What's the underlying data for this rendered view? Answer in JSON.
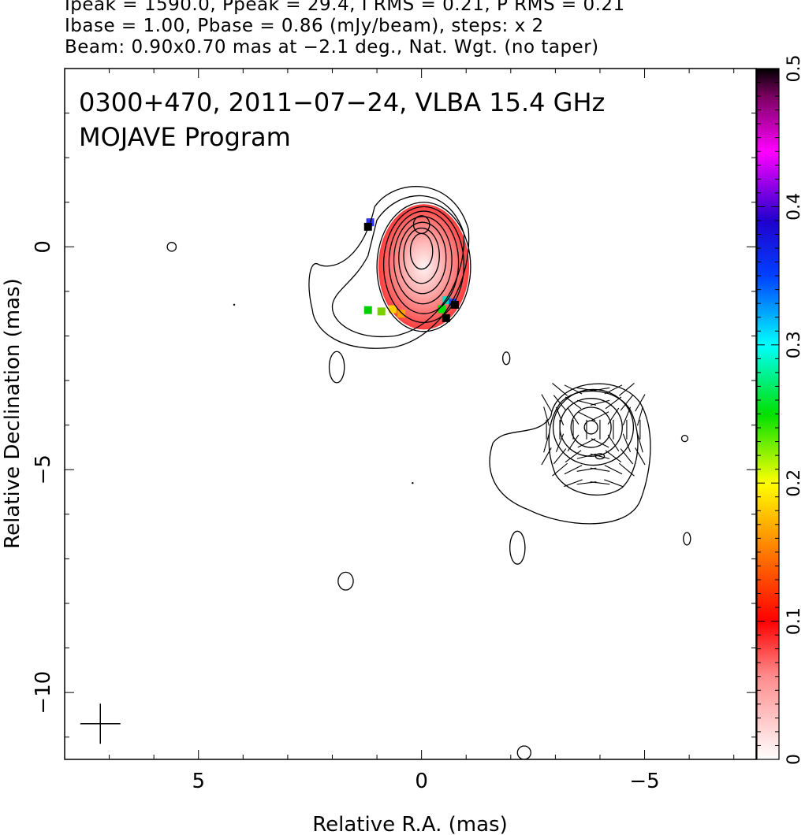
{
  "header": {
    "line1": "Ipeak = 1590.0, Ppeak = 29.4, I RMS = 0.21, P RMS = 0.21",
    "line2": "Ibase = 1.00, Pbase = 0.86 (mJy/beam), steps: x 2",
    "line3": "Beam: 0.90x0.70 mas at −2.1 deg., Nat. Wgt. (no taper)"
  },
  "chart_data": {
    "type": "heatmap",
    "title": "0300+470, 2011−07−24, VLBA 15.4 GHz",
    "subtitle": "MOJAVE Program",
    "xlabel": "Relative R.A. (mas)",
    "ylabel": "Relative Declination (mas)",
    "xlim": [
      8.0,
      -7.5
    ],
    "ylim": [
      -11.5,
      4.0
    ],
    "x_reversed": true,
    "x_ticks": [
      {
        "value": 5,
        "label": "5"
      },
      {
        "value": 0,
        "label": "0"
      },
      {
        "value": -5,
        "label": "−5"
      }
    ],
    "y_ticks": [
      {
        "value": 0,
        "label": "0"
      },
      {
        "value": -5,
        "label": "−5"
      },
      {
        "value": -10,
        "label": "−10"
      }
    ],
    "colorbar": {
      "range": [
        0,
        0.5
      ],
      "ticks": [
        {
          "value": 0,
          "label": "0"
        },
        {
          "value": 0.1,
          "label": "0.1"
        },
        {
          "value": 0.2,
          "label": "0.2"
        },
        {
          "value": 0.3,
          "label": "0.3"
        },
        {
          "value": 0.4,
          "label": "0.4"
        },
        {
          "value": 0.5,
          "label": "0.5"
        }
      ]
    },
    "core_contours": [
      {
        "x": -0.05,
        "y": -0.45,
        "rx": 1.05,
        "ry": 1.45
      },
      {
        "x": -0.05,
        "y": -0.4,
        "rx": 0.9,
        "ry": 1.3
      },
      {
        "x": -0.05,
        "y": -0.35,
        "rx": 0.78,
        "ry": 1.15
      },
      {
        "x": -0.03,
        "y": -0.3,
        "rx": 0.65,
        "ry": 0.98
      },
      {
        "x": -0.02,
        "y": -0.25,
        "rx": 0.53,
        "ry": 0.8
      },
      {
        "x": 0.0,
        "y": -0.2,
        "rx": 0.4,
        "ry": 0.62
      },
      {
        "x": 0.0,
        "y": -0.1,
        "rx": 0.25,
        "ry": 0.4
      },
      {
        "x": 0.0,
        "y": 0.5,
        "rx": 0.18,
        "ry": 0.2
      }
    ],
    "jet_contours": [
      {
        "x": -3.85,
        "y": -4.05,
        "rx": 0.9,
        "ry": 0.85
      },
      {
        "x": -3.8,
        "y": -4.05,
        "rx": 0.7,
        "ry": 0.65
      },
      {
        "x": -3.8,
        "y": -4.05,
        "rx": 0.45,
        "ry": 0.45
      },
      {
        "x": -3.8,
        "y": -4.05,
        "rx": 0.15,
        "ry": 0.15
      },
      {
        "x": -4.0,
        "y": -4.7,
        "rx": 0.1,
        "ry": 0.06
      }
    ],
    "isolated_contours": [
      {
        "x": 5.6,
        "y": 0.0,
        "rx": 0.1,
        "ry": 0.1
      },
      {
        "x": 1.9,
        "y": -2.7,
        "rx": 0.17,
        "ry": 0.35
      },
      {
        "x": -1.9,
        "y": -2.5,
        "rx": 0.08,
        "ry": 0.14
      },
      {
        "x": -2.15,
        "y": -6.75,
        "rx": 0.17,
        "ry": 0.37
      },
      {
        "x": 1.7,
        "y": -7.5,
        "rx": 0.17,
        "ry": 0.2
      },
      {
        "x": -5.9,
        "y": -4.3,
        "rx": 0.07,
        "ry": 0.07
      },
      {
        "x": -5.95,
        "y": -6.55,
        "rx": 0.08,
        "ry": 0.14
      },
      {
        "x": -2.3,
        "y": -11.35,
        "rx": 0.15,
        "ry": 0.15
      }
    ],
    "beam": {
      "major": 0.9,
      "minor": 0.7,
      "pa_deg": -2.1,
      "x": 7.2,
      "y": -10.7
    }
  }
}
